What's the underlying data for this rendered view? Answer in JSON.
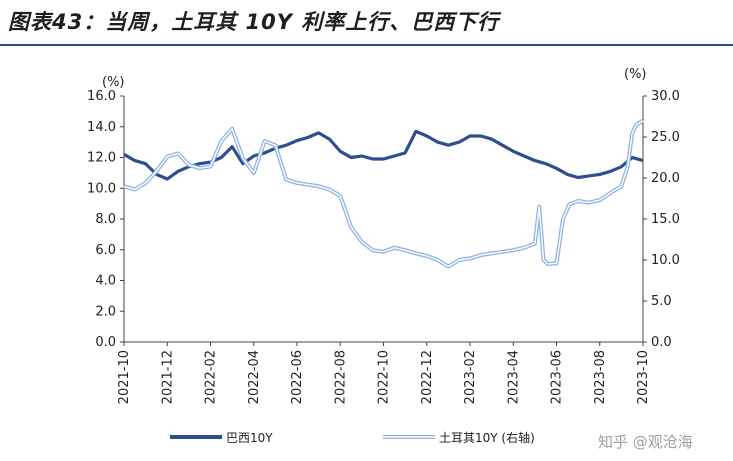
{
  "title": "图表43：当周，土耳其 10Y 利率上行、巴西下行",
  "watermark": "知乎 @观沧海",
  "chart_data": {
    "type": "line",
    "title": "图表43：当周，土耳其 10Y 利率上行、巴西下行",
    "left_unit": "(%)",
    "right_unit": "(%)",
    "ylim_left": [
      0,
      16
    ],
    "ylim_right": [
      0,
      30
    ],
    "yticks_left": [
      "0.0",
      "2.0",
      "4.0",
      "6.0",
      "8.0",
      "10.0",
      "12.0",
      "14.0",
      "16.0"
    ],
    "yticks_right": [
      "0.0",
      "5.0",
      "10.0",
      "15.0",
      "20.0",
      "25.0",
      "30.0"
    ],
    "xlim": [
      0,
      24
    ],
    "x_tick_labels": [
      "2021-10",
      "2021-12",
      "2022-02",
      "2022-04",
      "2022-06",
      "2022-08",
      "2022-10",
      "2022-12",
      "2023-02",
      "2023-04",
      "2023-06",
      "2023-08",
      "2023-10"
    ],
    "legend_position": "bottom",
    "series": [
      {
        "name": "巴西10Y",
        "axis": "left",
        "color": "#2e4f8f",
        "points": [
          [
            0,
            12.2
          ],
          [
            0.5,
            11.8
          ],
          [
            1.0,
            11.6
          ],
          [
            1.5,
            10.9
          ],
          [
            2.0,
            10.6
          ],
          [
            2.5,
            11.1
          ],
          [
            3.0,
            11.4
          ],
          [
            3.5,
            11.6
          ],
          [
            4.0,
            11.7
          ],
          [
            4.5,
            12.0
          ],
          [
            5.0,
            12.7
          ],
          [
            5.5,
            11.6
          ],
          [
            6.0,
            12.1
          ],
          [
            6.5,
            12.3
          ],
          [
            7.0,
            12.6
          ],
          [
            7.5,
            12.8
          ],
          [
            8.0,
            13.1
          ],
          [
            8.5,
            13.3
          ],
          [
            9.0,
            13.6
          ],
          [
            9.5,
            13.2
          ],
          [
            10.0,
            12.4
          ],
          [
            10.5,
            12.0
          ],
          [
            11.0,
            12.1
          ],
          [
            11.5,
            11.9
          ],
          [
            12.0,
            11.9
          ],
          [
            12.5,
            12.1
          ],
          [
            13.0,
            12.3
          ],
          [
            13.5,
            13.7
          ],
          [
            14.0,
            13.4
          ],
          [
            14.5,
            13.0
          ],
          [
            15.0,
            12.8
          ],
          [
            15.5,
            13.0
          ],
          [
            16.0,
            13.4
          ],
          [
            16.5,
            13.4
          ],
          [
            17.0,
            13.2
          ],
          [
            17.5,
            12.8
          ],
          [
            18.0,
            12.4
          ],
          [
            18.5,
            12.1
          ],
          [
            19.0,
            11.8
          ],
          [
            19.5,
            11.6
          ],
          [
            20.0,
            11.3
          ],
          [
            20.5,
            10.9
          ],
          [
            21.0,
            10.7
          ],
          [
            21.5,
            10.8
          ],
          [
            22.0,
            10.9
          ],
          [
            22.5,
            11.1
          ],
          [
            23.0,
            11.4
          ],
          [
            23.5,
            12.0
          ],
          [
            24.0,
            11.8
          ]
        ]
      },
      {
        "name": "土耳其10Y (右轴)",
        "axis": "right",
        "color": "#8fb4e3",
        "points": [
          [
            0,
            19.0
          ],
          [
            0.5,
            18.6
          ],
          [
            1.0,
            19.4
          ],
          [
            1.5,
            20.8
          ],
          [
            2.0,
            22.6
          ],
          [
            2.5,
            23.0
          ],
          [
            3.0,
            21.6
          ],
          [
            3.5,
            21.2
          ],
          [
            4.0,
            21.4
          ],
          [
            4.5,
            24.5
          ],
          [
            5.0,
            26.0
          ],
          [
            5.5,
            22.4
          ],
          [
            6.0,
            20.6
          ],
          [
            6.5,
            24.5
          ],
          [
            7.0,
            24.0
          ],
          [
            7.5,
            19.8
          ],
          [
            8.0,
            19.4
          ],
          [
            8.5,
            19.2
          ],
          [
            9.0,
            19.0
          ],
          [
            9.5,
            18.6
          ],
          [
            10.0,
            17.8
          ],
          [
            10.5,
            14.0
          ],
          [
            11.0,
            12.2
          ],
          [
            11.5,
            11.2
          ],
          [
            12.0,
            11.0
          ],
          [
            12.5,
            11.5
          ],
          [
            13.0,
            11.2
          ],
          [
            13.5,
            10.8
          ],
          [
            14.0,
            10.5
          ],
          [
            14.5,
            10.0
          ],
          [
            15.0,
            9.2
          ],
          [
            15.5,
            10.0
          ],
          [
            16.0,
            10.2
          ],
          [
            16.5,
            10.6
          ],
          [
            17.0,
            10.8
          ],
          [
            17.5,
            11.0
          ],
          [
            18.0,
            11.2
          ],
          [
            18.5,
            11.5
          ],
          [
            19.0,
            12.0
          ],
          [
            19.2,
            16.5
          ],
          [
            19.4,
            10.0
          ],
          [
            19.6,
            9.5
          ],
          [
            20.0,
            9.6
          ],
          [
            20.3,
            15.0
          ],
          [
            20.6,
            16.8
          ],
          [
            21.0,
            17.2
          ],
          [
            21.5,
            17.0
          ],
          [
            22.0,
            17.3
          ],
          [
            22.5,
            18.2
          ],
          [
            23.0,
            19.0
          ],
          [
            23.3,
            21.5
          ],
          [
            23.5,
            25.5
          ],
          [
            23.7,
            26.5
          ],
          [
            24.0,
            27.0
          ]
        ]
      }
    ]
  }
}
